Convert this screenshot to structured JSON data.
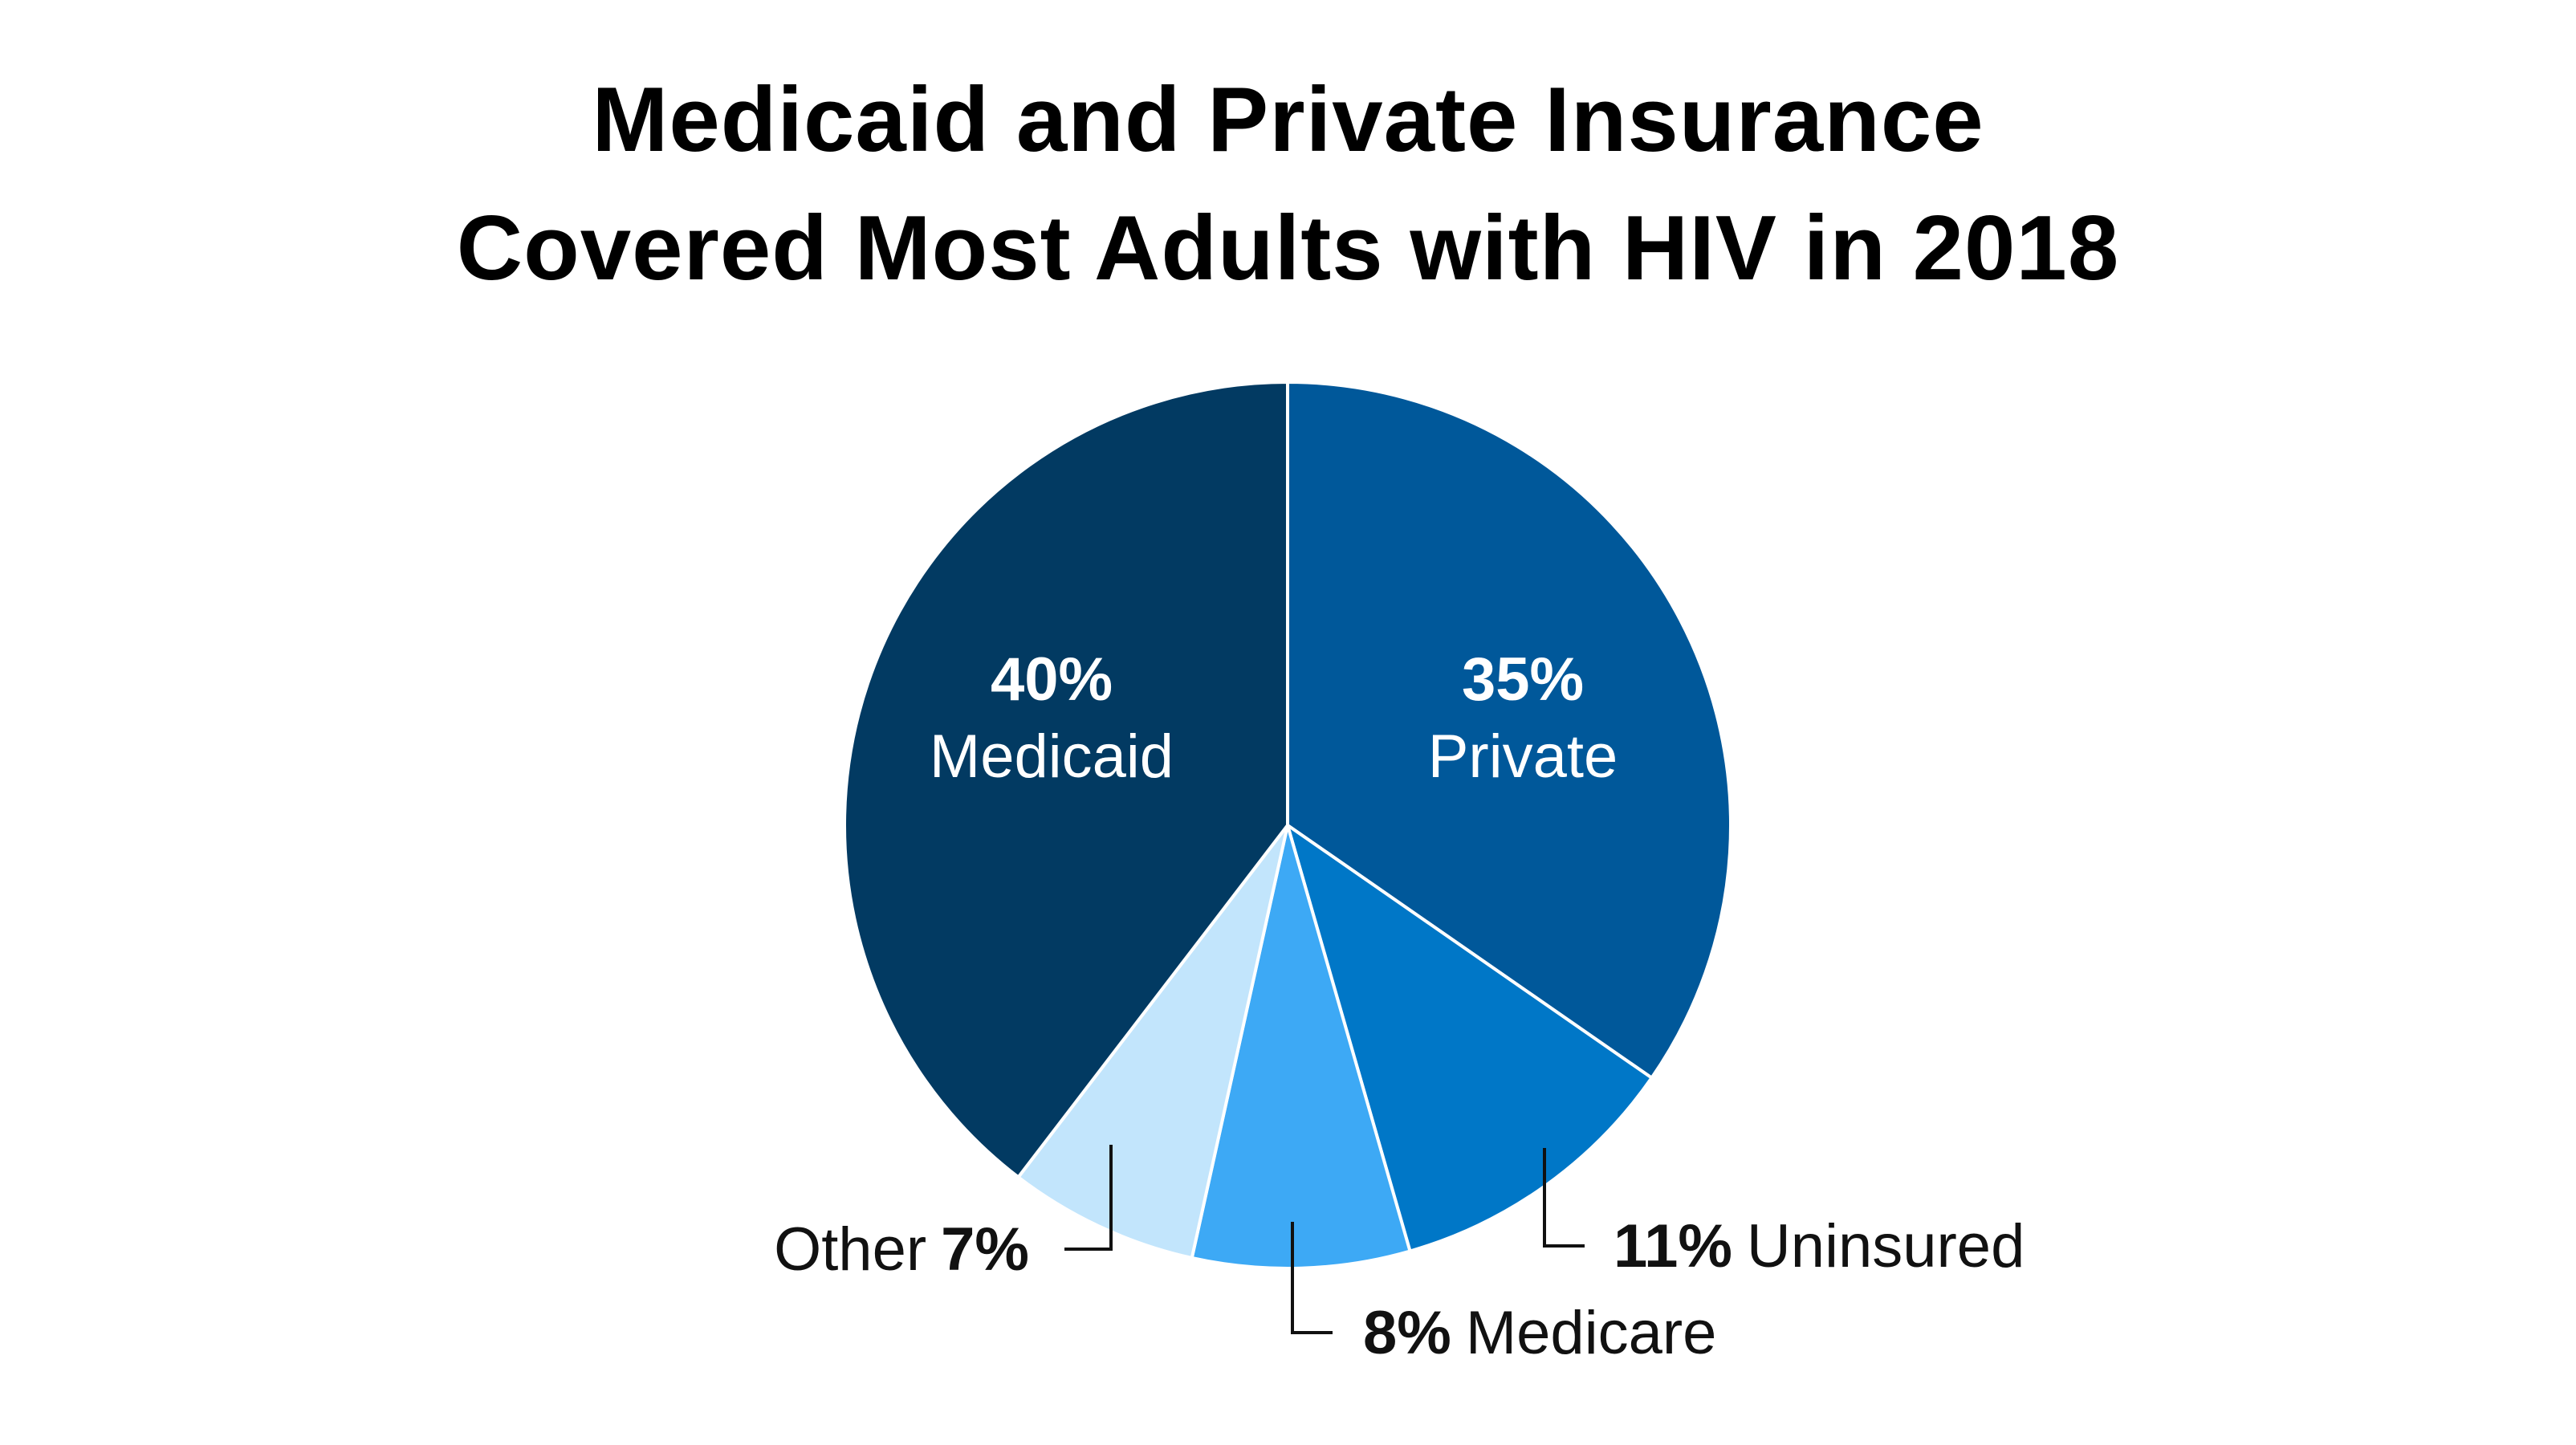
{
  "chart_data": {
    "type": "pie",
    "title": [
      "Medicaid and Private Insurance",
      "Covered Most Adults with HIV in 2018"
    ],
    "slices": [
      {
        "label": "Private",
        "pct_label": "35%",
        "value": 35,
        "color": "#00589a"
      },
      {
        "label": "Uninsured",
        "pct_label": "11%",
        "value": 11,
        "color": "#0077c7"
      },
      {
        "label": "Medicare",
        "pct_label": "8%",
        "value": 8,
        "color": "#3da9f5"
      },
      {
        "label": "Other",
        "pct_label": "7%",
        "value": 7,
        "color": "#c2e5fc"
      },
      {
        "label": "Medicaid",
        "pct_label": "40%",
        "value": 40,
        "color": "#023a62"
      }
    ],
    "start": "12 o'clock, clockwise",
    "legend": "none (direct labels)"
  }
}
